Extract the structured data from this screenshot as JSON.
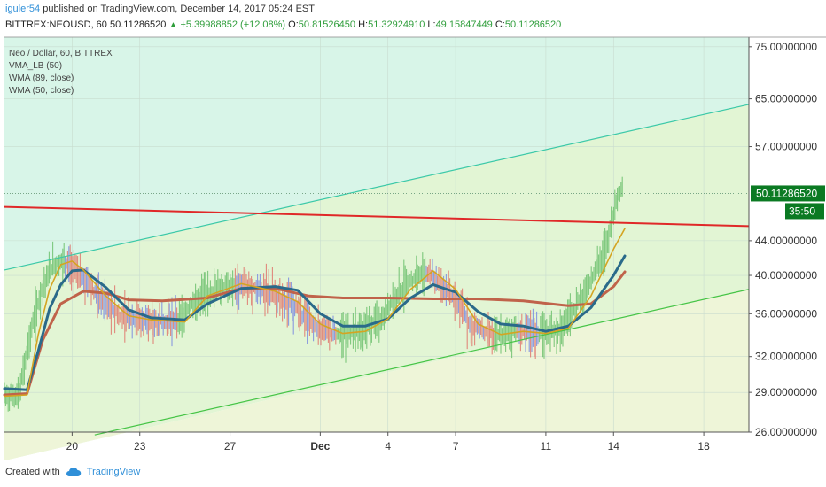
{
  "header": {
    "author": "iguler54",
    "published_text": "published on TradingView.com, December 14, 2017 05:24 EST",
    "symbol": "BITTREX:NEOUSD, 60",
    "last": "50.11286520",
    "change": "+5.39988852 (+12.08%)",
    "o_label": "O:",
    "o_value": "50.81526450",
    "h_label": "H:",
    "h_value": "51.32924910",
    "l_label": "L:",
    "l_value": "49.15847449",
    "c_label": "C:",
    "c_value": "50.11286520"
  },
  "legend": {
    "title": "Neo / Dollar, 60, BITTREX",
    "items": [
      "VMA_LB (50)",
      "WMA (89, close)",
      "WMA (50, close)"
    ]
  },
  "price_badge": "50.11286520",
  "countdown_badge": "35:50",
  "footer": {
    "created_with": "Created with",
    "brand": "TradingView"
  },
  "colors": {
    "upper_band": "#d8f5e8",
    "middle_band": "#e2f5d4",
    "lower_band": "#eef5d8",
    "resistance": "#e02828",
    "vma": "#c0634a",
    "wma89": "#2a6a8a",
    "wma50": "#d4a422",
    "candle_up": "#6cc06c",
    "candle_down": "#e0766c",
    "candle_flat": "#7a8ae0",
    "badge_green": "#0b7a23"
  },
  "chart_data": {
    "type": "line",
    "y_scale": "log",
    "ylim": [
      26,
      77
    ],
    "y_ticks": [
      "75.00000000",
      "65.00000000",
      "57.00000000",
      "44.00000000",
      "40.00000000",
      "36.00000000",
      "32.00000000",
      "29.00000000",
      "26.00000000"
    ],
    "y_tick_values": [
      75,
      65,
      57,
      44,
      40,
      36,
      32,
      29,
      26
    ],
    "x_ticks": [
      "20",
      "23",
      "27",
      "Dec",
      "4",
      "7",
      "11",
      "14",
      "18"
    ],
    "x_tick_days": [
      20,
      23,
      27,
      31,
      34,
      37,
      41,
      44,
      48
    ],
    "x_range_days": [
      17.0,
      50.0
    ],
    "last_price": 50.1128652,
    "channel_upper": [
      {
        "x": 17.0,
        "y": 40.6
      },
      {
        "x": 50.0,
        "y": 64.0
      }
    ],
    "channel_lower": [
      {
        "x": 21.0,
        "y": 25.8
      },
      {
        "x": 50.0,
        "y": 38.5
      }
    ],
    "resistance_line": [
      {
        "x": 17.0,
        "y": 48.3
      },
      {
        "x": 50.0,
        "y": 45.8
      }
    ],
    "series": [
      {
        "name": "VMA_LB (50)",
        "points": [
          [
            17.0,
            28.8
          ],
          [
            18.0,
            28.9
          ],
          [
            18.7,
            33.5
          ],
          [
            19.5,
            37.0
          ],
          [
            20.5,
            38.3
          ],
          [
            21.5,
            38.1
          ],
          [
            22.5,
            37.4
          ],
          [
            24,
            37.3
          ],
          [
            26,
            37.6
          ],
          [
            27.5,
            38.6
          ],
          [
            29,
            38.6
          ],
          [
            30.5,
            37.8
          ],
          [
            32,
            37.6
          ],
          [
            34,
            37.6
          ],
          [
            36,
            37.5
          ],
          [
            38,
            37.5
          ],
          [
            40,
            37.3
          ],
          [
            42,
            36.8
          ],
          [
            43,
            37.0
          ],
          [
            44,
            38.8
          ],
          [
            44.5,
            40.4
          ]
        ]
      },
      {
        "name": "WMA (89, close)",
        "points": [
          [
            17.0,
            29.3
          ],
          [
            18.0,
            29.2
          ],
          [
            18.5,
            32.5
          ],
          [
            19.0,
            36.5
          ],
          [
            19.5,
            39.0
          ],
          [
            20.0,
            40.5
          ],
          [
            20.5,
            40.6
          ],
          [
            21.5,
            38.7
          ],
          [
            22.5,
            36.4
          ],
          [
            23.5,
            35.6
          ],
          [
            25,
            35.4
          ],
          [
            26,
            37.0
          ],
          [
            27.5,
            38.6
          ],
          [
            29,
            38.8
          ],
          [
            30,
            38.4
          ],
          [
            31,
            36.0
          ],
          [
            32,
            34.8
          ],
          [
            33,
            34.8
          ],
          [
            34,
            35.5
          ],
          [
            35,
            37.6
          ],
          [
            36,
            39.0
          ],
          [
            37,
            38.2
          ],
          [
            38,
            36.2
          ],
          [
            39,
            35.0
          ],
          [
            40,
            34.8
          ],
          [
            41,
            34.3
          ],
          [
            42,
            34.8
          ],
          [
            43,
            36.6
          ],
          [
            44,
            40.0
          ],
          [
            44.5,
            42.2
          ]
        ]
      },
      {
        "name": "WMA (50, close)",
        "points": [
          [
            17.0,
            28.7
          ],
          [
            18.0,
            28.8
          ],
          [
            18.5,
            34.0
          ],
          [
            19.0,
            38.5
          ],
          [
            19.5,
            41.2
          ],
          [
            20.0,
            41.6
          ],
          [
            20.5,
            40.6
          ],
          [
            21.5,
            37.8
          ],
          [
            22.5,
            35.8
          ],
          [
            23.5,
            35.4
          ],
          [
            25,
            35.2
          ],
          [
            26,
            37.8
          ],
          [
            27.5,
            39.1
          ],
          [
            29,
            38.3
          ],
          [
            30,
            37.2
          ],
          [
            31,
            35.0
          ],
          [
            32,
            34.1
          ],
          [
            33,
            34.3
          ],
          [
            34,
            35.5
          ],
          [
            35,
            38.5
          ],
          [
            36,
            40.5
          ],
          [
            37,
            38.5
          ],
          [
            38,
            35.0
          ],
          [
            39,
            34.0
          ],
          [
            40,
            34.3
          ],
          [
            41,
            34.1
          ],
          [
            42,
            34.6
          ],
          [
            43,
            37.8
          ],
          [
            44,
            43.0
          ],
          [
            44.5,
            45.5
          ]
        ]
      }
    ]
  }
}
